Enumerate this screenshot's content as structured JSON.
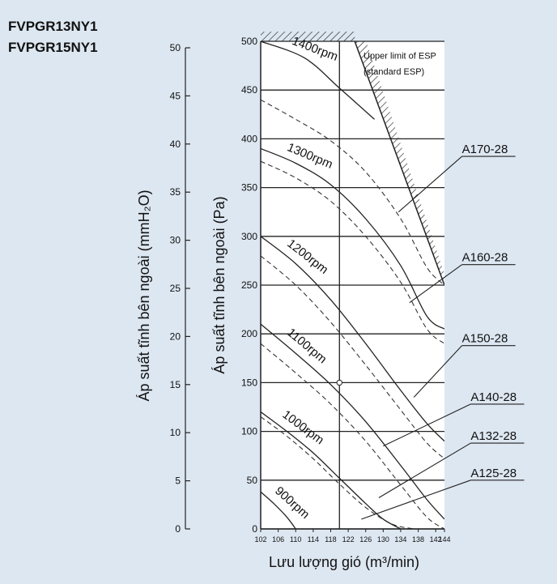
{
  "models": [
    "FVPGR13NY1",
    "FVPGR15NY1"
  ],
  "chart_data": {
    "type": "line",
    "xlabel": "Lưu lượng gió (m³/min)",
    "ylabel": "Áp suất tĩnh bên ngoài (Pa)",
    "ylabel2": "Áp suất tĩnh bên ngoài (mmH₂O)",
    "xlim": [
      102,
      144
    ],
    "ylim": [
      0,
      500
    ],
    "ylim2": [
      0,
      50
    ],
    "grid": true,
    "x_ticks": [
      "102",
      "106",
      "110",
      "114",
      "118",
      "122",
      "126",
      "130",
      "134",
      "138",
      "142",
      "144"
    ],
    "y_ticks": [
      "0",
      "50",
      "100",
      "150",
      "200",
      "250",
      "300",
      "350",
      "400",
      "450",
      "500"
    ],
    "y2_ticks": [
      "0",
      "5",
      "10",
      "15",
      "20",
      "25",
      "30",
      "35",
      "40",
      "45",
      "50"
    ],
    "x_tick_values": [
      102,
      106,
      110,
      114,
      118,
      122,
      126,
      130,
      134,
      138,
      142,
      144
    ],
    "y_tick_values": [
      0,
      50,
      100,
      150,
      200,
      250,
      300,
      350,
      400,
      450,
      500
    ],
    "upper_limit": {
      "label_line1": "Upper limit of ESP",
      "label_line2": "(standard ESP)",
      "x": [
        123.5,
        144
      ],
      "y": [
        500,
        250
      ]
    },
    "reference_point": {
      "x": 120,
      "y": 150
    },
    "rpm_curves": [
      {
        "name": "1400rpm",
        "x": [
          102,
          112,
          120,
          128
        ],
        "y": [
          500,
          483,
          452,
          420
        ]
      },
      {
        "name": "1300rpm",
        "x": [
          102,
          110,
          118,
          126,
          134,
          140,
          144
        ],
        "y": [
          390,
          375,
          353,
          318,
          270,
          218,
          205
        ]
      },
      {
        "name": "1200rpm",
        "x": [
          102,
          110,
          118,
          126,
          134,
          140,
          144
        ],
        "y": [
          300,
          272,
          235,
          190,
          142,
          108,
          90
        ]
      },
      {
        "name": "1100rpm",
        "x": [
          102,
          110,
          118,
          126,
          134,
          140,
          144
        ],
        "y": [
          210,
          180,
          148,
          110,
          65,
          30,
          10
        ]
      },
      {
        "name": "1000rpm",
        "x": [
          102,
          108,
          114,
          120,
          126,
          130,
          134
        ],
        "y": [
          120,
          100,
          78,
          52,
          26,
          10,
          0
        ]
      },
      {
        "name": "900rpm",
        "x": [
          102,
          105,
          108,
          110
        ],
        "y": [
          38,
          26,
          12,
          0
        ]
      }
    ],
    "dashed_curves": [
      {
        "x": [
          102,
          110,
          118,
          126,
          134,
          140,
          144
        ],
        "y": [
          440,
          420,
          398,
          366,
          318,
          268,
          250
        ]
      },
      {
        "x": [
          102,
          110,
          118,
          126,
          134,
          140,
          144
        ],
        "y": [
          377,
          360,
          336,
          300,
          253,
          205,
          190
        ]
      },
      {
        "x": [
          102,
          110,
          118,
          126,
          134,
          140,
          144
        ],
        "y": [
          280,
          250,
          212,
          168,
          122,
          88,
          72
        ]
      },
      {
        "x": [
          102,
          110,
          118,
          126,
          134,
          140,
          144
        ],
        "y": [
          190,
          160,
          128,
          90,
          45,
          12,
          0
        ]
      },
      {
        "x": [
          102,
          108,
          114,
          120,
          126,
          132,
          137
        ],
        "y": [
          115,
          95,
          72,
          46,
          22,
          5,
          0
        ]
      }
    ],
    "annotations": [
      {
        "label": "A170-28",
        "label_x": 148,
        "label_y": 382,
        "target_x": 133.5,
        "target_y": 325
      },
      {
        "label": "A160-28",
        "label_x": 148,
        "label_y": 271,
        "target_x": 136,
        "target_y": 232
      },
      {
        "label": "A150-28",
        "label_x": 148,
        "label_y": 188,
        "target_x": 137,
        "target_y": 135
      },
      {
        "label": "A140-28",
        "label_x": 150,
        "label_y": 128,
        "target_x": 130,
        "target_y": 85
      },
      {
        "label": "A132-28",
        "label_x": 150,
        "label_y": 88,
        "target_x": 129,
        "target_y": 32
      },
      {
        "label": "A125-28",
        "label_x": 150,
        "label_y": 50,
        "target_x": 125,
        "target_y": 10
      }
    ]
  }
}
